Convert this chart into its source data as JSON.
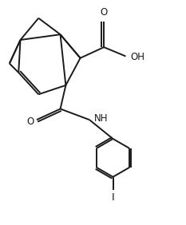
{
  "bg_color": "#ffffff",
  "line_color": "#1a1a1a",
  "line_width": 1.4,
  "figsize": [
    2.33,
    2.82
  ],
  "dpi": 100,
  "labels": {
    "O": "O",
    "OH": "OH",
    "NH": "NH",
    "I": "I"
  },
  "label_fontsize": 8.5
}
